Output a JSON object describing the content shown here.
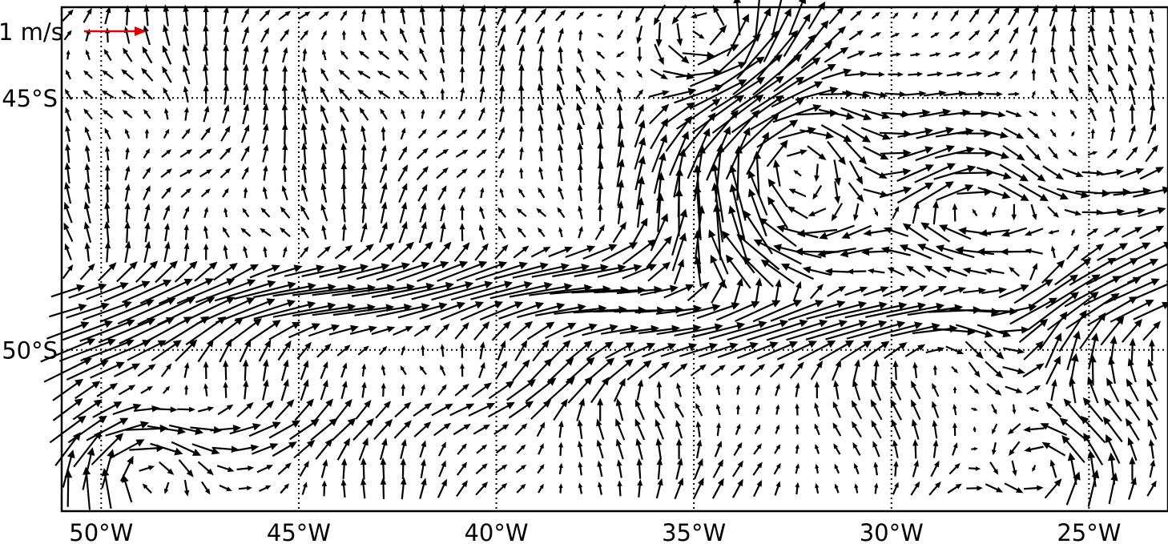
{
  "map": {
    "lon_range": [
      -51,
      -23
    ],
    "lat_range": [
      -43.2,
      -53.2
    ],
    "lon_ticks": [
      {
        "value": -50,
        "label": "50°W"
      },
      {
        "value": -45,
        "label": "45°W"
      },
      {
        "value": -40,
        "label": "40°W"
      },
      {
        "value": -35,
        "label": "35°W"
      },
      {
        "value": -30,
        "label": "30°W"
      },
      {
        "value": -25,
        "label": "25°W"
      }
    ],
    "lat_ticks": [
      {
        "value": -45,
        "label": "45°S"
      },
      {
        "value": -50,
        "label": "50°S"
      }
    ],
    "gridlines": true,
    "reference_vector": {
      "label": "1 m/s",
      "speed": 1.0,
      "color": "#e00000",
      "placement": "top-left"
    },
    "vector_color": "#000000",
    "field": "surface current velocity vectors (quiver)"
  }
}
